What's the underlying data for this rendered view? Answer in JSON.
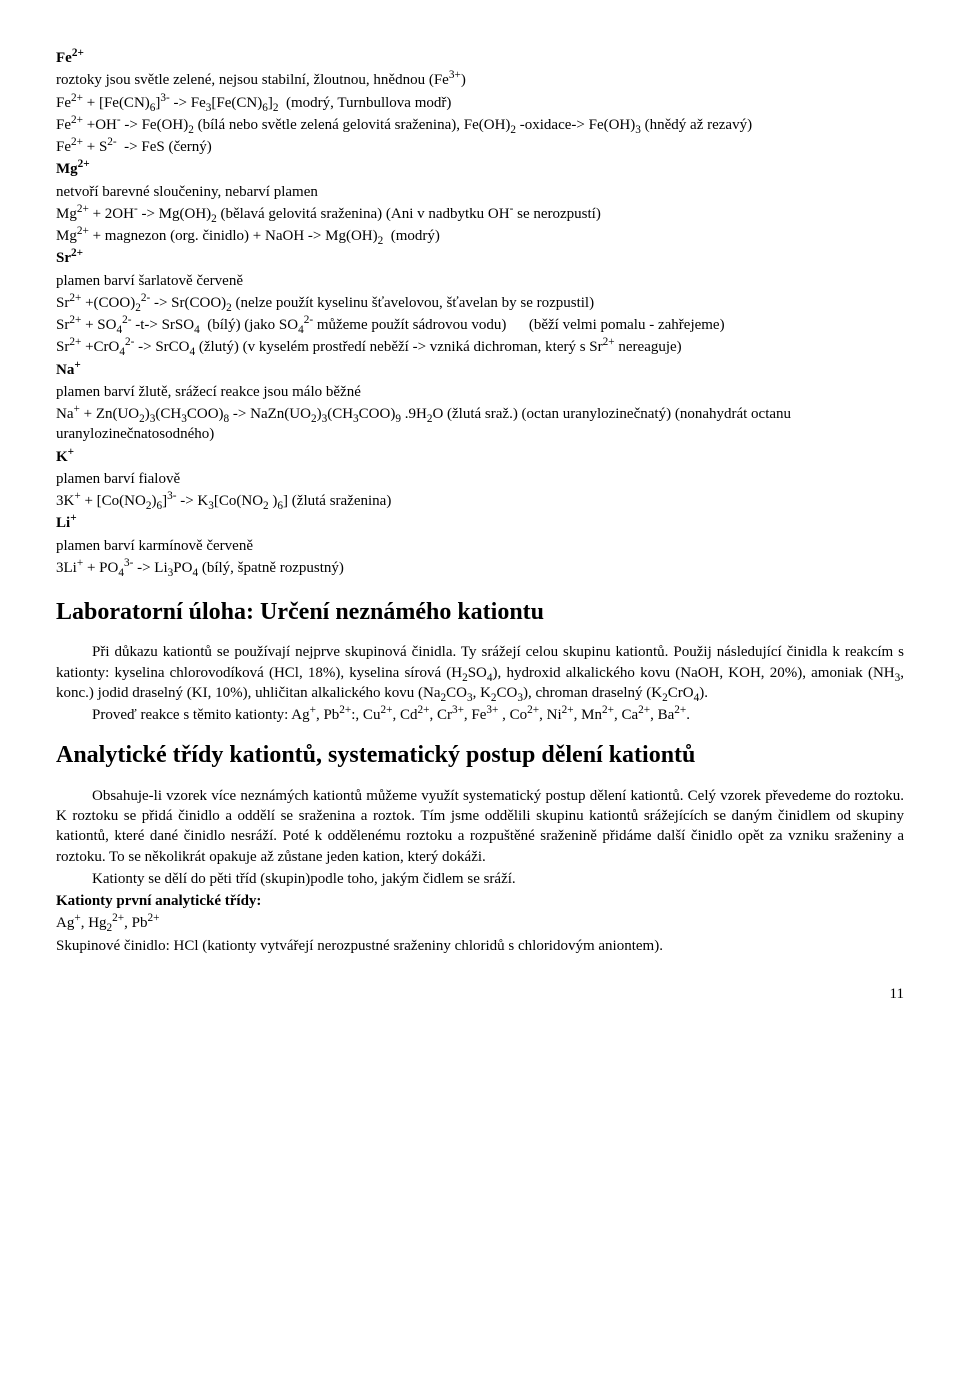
{
  "lines": [
    {
      "html": "<b>Fe<sup>2+</sup></b>"
    },
    {
      "html": "roztoky jsou světle zelené, nejsou stabilní, žloutnou, hnědnou (Fe<sup>3+</sup>)"
    },
    {
      "html": "Fe<sup>2+</sup> + [Fe(CN)<sub>6</sub>]<sup>3-</sup> -> Fe<sub>3</sub>[Fe(CN)<sub>6</sub>]<sub>2</sub>&nbsp;&nbsp;(modrý, Turnbullova modř)"
    },
    {
      "html": "Fe<sup>2+</sup> +OH<sup>-</sup> -> Fe(OH)<sub>2</sub> (bílá nebo světle zelená gelovitá sraženina), Fe(OH)<sub>2</sub> -oxidace-> Fe(OH)<sub>3</sub> (hnědý až rezavý)"
    },
    {
      "html": "Fe<sup>2+</sup> + S<sup>2-</sup>&nbsp;&nbsp;-> FeS (černý)"
    },
    {
      "html": "<b>Mg<sup>2+</sup></b>"
    },
    {
      "html": "netvoří barevné sloučeniny, nebarví plamen"
    },
    {
      "html": "Mg<sup>2+</sup> + 2OH<sup>-</sup> -> Mg(OH)<sub>2</sub> (bělavá gelovitá sraženina) (Ani v nadbytku&nbsp;OH<sup>-</sup> se nerozpustí)"
    },
    {
      "html": "Mg<sup>2+</sup> + magnezon (org. činidlo) + NaOH -> Mg(OH)<sub>2</sub>&nbsp;&nbsp;(modrý)"
    },
    {
      "html": "<b>Sr<sup>2+</sup></b>"
    },
    {
      "html": "plamen barví šarlatově červeně"
    },
    {
      "html": "Sr<sup>2+</sup> +(COO)<sub>2</sub><sup>2-</sup> -> Sr(COO)<sub>2</sub> (nelze použít kyselinu šťavelovou, šťavelan by se rozpustil)"
    },
    {
      "html": "Sr<sup>2+</sup> + SO<sub>4</sub><sup>2-</sup> -t-> SrSO<sub>4</sub>&nbsp;&nbsp;(bílý) (jako SO<sub>4</sub><sup>2-</sup> můžeme použít sádrovou vodu)&nbsp;&nbsp;&nbsp;&nbsp;&nbsp;&nbsp;(běží velmi pomalu - zahřejeme)"
    },
    {
      "html": "Sr<sup>2+</sup> +CrO<sub>4</sub><sup>2-</sup> -> SrCO<sub>4</sub> (žlutý) (v kyselém prostředí neběží -> vzniká dichroman, který s Sr<sup>2+</sup> nereaguje)"
    },
    {
      "html": "<b>Na<sup>+</sup></b>"
    },
    {
      "html": "plamen barví žlutě, srážecí reakce jsou málo běžné"
    },
    {
      "html": "Na<sup>+</sup> + Zn(UO<sub>2</sub>)<sub>3</sub>(CH<sub>3</sub>COO)<sub>8</sub> -> NaZn(UO<sub>2</sub>)<sub>3</sub>(CH<sub>3</sub>COO)<sub>9</sub> .9H<sub>2</sub>O (žlutá sraž.) (octan uranylozinečnatý) (nonahydrát octanu uranylozinečnatosodného)"
    },
    {
      "html": "<b>K<sup>+</sup></b>"
    },
    {
      "html": "plamen barví fialově"
    },
    {
      "html": "3K<sup>+</sup> + [Co(NO<sub>2</sub>)<sub>6</sub>]<sup>3-</sup> -> K<sub>3</sub>[Co(NO<sub>2</sub> )<sub>6</sub>] (žlutá sraženina)"
    },
    {
      "html": "<b>Li<sup>+</sup></b>"
    },
    {
      "html": "plamen barví karmínově červeně"
    },
    {
      "html": "3Li<sup>+</sup> + PO<sub>4</sub><sup>3-</sup> -> Li<sub>3</sub>PO<sub>4</sub> (bílý, špatně rozpustný)"
    }
  ],
  "labTitle": "Laboratorní úloha: Určení neznámého kationtu",
  "labPara1": [
    {
      "indent": true,
      "html": "Při důkazu kationtů se používají nejprve skupinová činidla. Ty srážejí celou skupinu kationtů. Použij následující činidla k reakcím s kationty: kyselina chlorovodíková (HCl, 18%), kyselina sírová (H<sub>2</sub>SO<sub>4</sub>), hydroxid alkalického kovu (NaOH, KOH, 20%), amoniak (NH<sub>3</sub>, konc.) jodid draselný (KI, 10%), uhličitan alkalického kovu (Na<sub>2</sub>CO<sub>3</sub>, K<sub>2</sub>CO<sub>3</sub>), chroman draselný (K<sub>2</sub>CrO<sub>4</sub>)."
    },
    {
      "indent": true,
      "html": "Proveď reakce s těmito kationty: Ag<sup>+</sup>, Pb<sup>2+</sup>:, Cu<sup>2+</sup>, Cd<sup>2+</sup>, Cr<sup>3+</sup>, Fe<sup>3+</sup> , Co<sup>2+</sup>, Ni<sup>2+</sup>, Mn<sup>2+</sup>, Ca<sup>2+</sup>, Ba<sup>2+</sup>."
    }
  ],
  "sectionTitle": "Analytické třídy kationtů, systematický postup dělení kationtů",
  "secPara": [
    {
      "indent": true,
      "html": "Obsahuje-li vzorek více neznámých kationtů můžeme využít systematický postup dělení kationtů. Celý vzorek převedeme do roztoku. K roztoku se přidá činidlo a oddělí se sraženina a roztok. Tím jsme oddělili skupinu kationtů srážejících se daným činidlem od skupiny kationtů, které dané činidlo nesráží. Poté k oddělenému roztoku a rozpuštěné sraženině přidáme další činidlo opět za vzniku sraženiny a roztoku. To se několikrát opakuje až zůstane jeden kation, který dokáži."
    },
    {
      "indent": true,
      "html": "Kationty se dělí do pěti tříd (skupin)podle toho, jakým čidlem se sráží."
    },
    {
      "indent": false,
      "html": "<b>Kationty první analytické třídy:</b>"
    },
    {
      "indent": false,
      "html": "Ag<sup>+</sup>, Hg<sub>2</sub><sup>2+</sup>, Pb<sup>2+</sup>"
    },
    {
      "indent": false,
      "html": "Skupinové činidlo: HCl (kationty vytvářejí nerozpustné sraženiny chloridů s chloridovým aniontem)."
    }
  ],
  "pageNumber": "11"
}
